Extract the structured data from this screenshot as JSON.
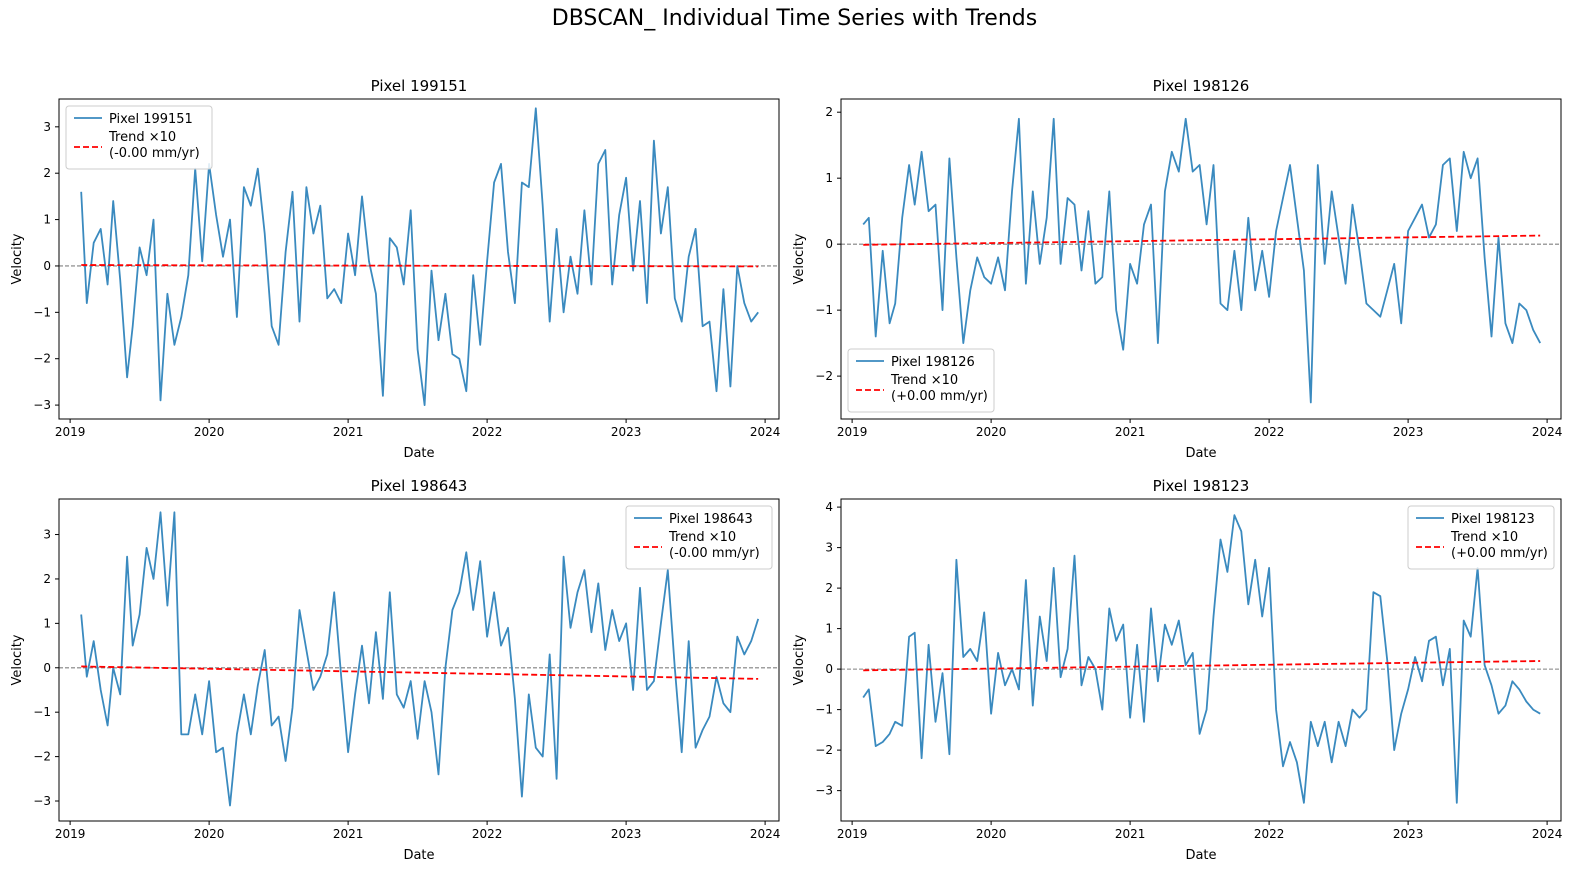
{
  "figure": {
    "title": "DBSCAN_ Individual Time Series with Trends"
  },
  "colors": {
    "series": "#3a8abf",
    "trend": "#ff0000",
    "zero_line": "#808080"
  },
  "chart_data": [
    {
      "type": "line",
      "title": "Pixel 199151",
      "xlabel": "Date",
      "ylabel": "Velocity",
      "xlim": [
        2018.92,
        2024.1
      ],
      "ylim": [
        -3.3,
        3.6
      ],
      "x_ticks": [
        2019,
        2020,
        2021,
        2022,
        2023,
        2024
      ],
      "x_tick_labels": [
        "2019",
        "2020",
        "2021",
        "2022",
        "2023",
        "2024"
      ],
      "y_ticks": [
        -3,
        -2,
        -1,
        0,
        1,
        2,
        3
      ],
      "y_tick_labels": [
        "−3",
        "−2",
        "−1",
        "0",
        "1",
        "2",
        "3"
      ],
      "legend_position": "top-left",
      "legend": {
        "series": "Pixel 199151",
        "trend_line1": "Trend ×10",
        "trend_line2": "(-0.00 mm/yr)"
      },
      "trend": {
        "x": [
          2019.08,
          2023.95
        ],
        "y": [
          0.02,
          -0.01
        ]
      },
      "series": [
        {
          "name": "Pixel 199151",
          "x": [
            2019.08,
            2019.12,
            2019.17,
            2019.22,
            2019.27,
            2019.31,
            2019.36,
            2019.41,
            2019.45,
            2019.5,
            2019.55,
            2019.6,
            2019.65,
            2019.7,
            2019.75,
            2019.8,
            2019.85,
            2019.9,
            2019.95,
            2020.0,
            2020.05,
            2020.1,
            2020.15,
            2020.2,
            2020.25,
            2020.3,
            2020.35,
            2020.4,
            2020.45,
            2020.5,
            2020.55,
            2020.6,
            2020.65,
            2020.7,
            2020.75,
            2020.8,
            2020.85,
            2020.9,
            2020.95,
            2021.0,
            2021.05,
            2021.1,
            2021.15,
            2021.2,
            2021.25,
            2021.3,
            2021.35,
            2021.4,
            2021.45,
            2021.5,
            2021.55,
            2021.6,
            2021.65,
            2021.7,
            2021.75,
            2021.8,
            2021.85,
            2021.9,
            2021.95,
            2022.0,
            2022.05,
            2022.1,
            2022.15,
            2022.2,
            2022.25,
            2022.3,
            2022.35,
            2022.4,
            2022.45,
            2022.5,
            2022.55,
            2022.6,
            2022.65,
            2022.7,
            2022.75,
            2022.8,
            2022.85,
            2022.9,
            2022.95,
            2023.0,
            2023.05,
            2023.1,
            2023.15,
            2023.2,
            2023.25,
            2023.3,
            2023.35,
            2023.4,
            2023.45,
            2023.5,
            2023.55,
            2023.6,
            2023.65,
            2023.7,
            2023.75,
            2023.8,
            2023.85,
            2023.9,
            2023.95
          ],
          "y": [
            1.6,
            -0.8,
            0.5,
            0.8,
            -0.4,
            1.4,
            -0.3,
            -2.4,
            -1.3,
            0.4,
            -0.2,
            1.0,
            -2.9,
            -0.6,
            -1.7,
            -1.1,
            -0.2,
            2.1,
            0.1,
            2.2,
            1.1,
            0.2,
            1.0,
            -1.1,
            1.7,
            1.3,
            2.1,
            0.7,
            -1.3,
            -1.7,
            0.3,
            1.6,
            -1.2,
            1.7,
            0.7,
            1.3,
            -0.7,
            -0.5,
            -0.8,
            0.7,
            -0.2,
            1.5,
            0.1,
            -0.6,
            -2.8,
            0.6,
            0.4,
            -0.4,
            1.2,
            -1.8,
            -3.0,
            -0.1,
            -1.6,
            -0.6,
            -1.9,
            -2.0,
            -2.7,
            -0.2,
            -1.7,
            0.1,
            1.8,
            2.2,
            0.3,
            -0.8,
            1.8,
            1.7,
            3.4,
            1.3,
            -1.2,
            0.8,
            -1.0,
            0.2,
            -0.6,
            1.2,
            -0.4,
            2.2,
            2.5,
            -0.4,
            1.1,
            1.9,
            -0.1,
            1.4,
            -0.8,
            2.7,
            0.7,
            1.7,
            -0.7,
            -1.2,
            0.2,
            0.8,
            -1.3,
            -1.2,
            -2.7,
            -0.5,
            -2.6,
            0.0,
            -0.8,
            -1.2,
            -1.0
          ]
        }
      ]
    },
    {
      "type": "line",
      "title": "Pixel 198126",
      "xlabel": "Date",
      "ylabel": "Velocity",
      "xlim": [
        2018.92,
        2024.1
      ],
      "ylim": [
        -2.65,
        2.2
      ],
      "x_ticks": [
        2019,
        2020,
        2021,
        2022,
        2023,
        2024
      ],
      "x_tick_labels": [
        "2019",
        "2020",
        "2021",
        "2022",
        "2023",
        "2024"
      ],
      "y_ticks": [
        -2,
        -1,
        0,
        1,
        2
      ],
      "y_tick_labels": [
        "−2",
        "−1",
        "0",
        "1",
        "2"
      ],
      "legend_position": "bottom-left",
      "legend": {
        "series": "Pixel 198126",
        "trend_line1": "Trend ×10",
        "trend_line2": "(+0.00 mm/yr)"
      },
      "trend": {
        "x": [
          2019.08,
          2023.95
        ],
        "y": [
          -0.01,
          0.13
        ]
      },
      "series": [
        {
          "name": "Pixel 198126",
          "x": [
            2019.08,
            2019.12,
            2019.17,
            2019.22,
            2019.27,
            2019.31,
            2019.36,
            2019.41,
            2019.45,
            2019.5,
            2019.55,
            2019.6,
            2019.65,
            2019.7,
            2019.75,
            2019.8,
            2019.85,
            2019.9,
            2019.95,
            2020.0,
            2020.05,
            2020.1,
            2020.15,
            2020.2,
            2020.25,
            2020.3,
            2020.35,
            2020.4,
            2020.45,
            2020.5,
            2020.55,
            2020.6,
            2020.65,
            2020.7,
            2020.75,
            2020.8,
            2020.85,
            2020.9,
            2020.95,
            2021.0,
            2021.05,
            2021.1,
            2021.15,
            2021.2,
            2021.25,
            2021.3,
            2021.35,
            2021.4,
            2021.45,
            2021.5,
            2021.55,
            2021.6,
            2021.65,
            2021.7,
            2021.75,
            2021.8,
            2021.85,
            2021.9,
            2021.95,
            2022.0,
            2022.05,
            2022.1,
            2022.15,
            2022.2,
            2022.25,
            2022.3,
            2022.35,
            2022.4,
            2022.45,
            2022.5,
            2022.55,
            2022.6,
            2022.65,
            2022.7,
            2022.75,
            2022.8,
            2022.85,
            2022.9,
            2022.95,
            2023.0,
            2023.05,
            2023.1,
            2023.15,
            2023.2,
            2023.25,
            2023.3,
            2023.35,
            2023.4,
            2023.45,
            2023.5,
            2023.55,
            2023.6,
            2023.65,
            2023.7,
            2023.75,
            2023.8,
            2023.85,
            2023.9,
            2023.95
          ],
          "y": [
            0.3,
            0.4,
            -1.4,
            -0.1,
            -1.2,
            -0.9,
            0.4,
            1.2,
            0.6,
            1.4,
            0.5,
            0.6,
            -1.0,
            1.3,
            -0.2,
            -1.5,
            -0.7,
            -0.2,
            -0.5,
            -0.6,
            -0.2,
            -0.7,
            0.8,
            1.9,
            -0.6,
            0.8,
            -0.3,
            0.4,
            1.9,
            -0.3,
            0.7,
            0.6,
            -0.4,
            0.5,
            -0.6,
            -0.5,
            0.8,
            -1.0,
            -1.6,
            -0.3,
            -0.6,
            0.3,
            0.6,
            -1.5,
            0.8,
            1.4,
            1.1,
            1.9,
            1.1,
            1.2,
            0.3,
            1.2,
            -0.9,
            -1.0,
            -0.1,
            -1.0,
            0.4,
            -0.7,
            -0.1,
            -0.8,
            0.2,
            0.7,
            1.2,
            0.4,
            -0.4,
            -2.4,
            1.2,
            -0.3,
            0.8,
            0.1,
            -0.6,
            0.6,
            -0.1,
            -0.9,
            -1.0,
            -1.1,
            -0.7,
            -0.3,
            -1.2,
            0.2,
            0.4,
            0.6,
            0.1,
            0.3,
            1.2,
            1.3,
            0.2,
            1.4,
            1.0,
            1.3,
            -0.2,
            -1.4,
            0.1,
            -1.2,
            -1.5,
            -0.9,
            -1.0,
            -1.3,
            -1.5
          ]
        }
      ]
    },
    {
      "type": "line",
      "title": "Pixel 198643",
      "xlabel": "Date",
      "ylabel": "Velocity",
      "xlim": [
        2018.92,
        2024.1
      ],
      "ylim": [
        -3.45,
        3.8
      ],
      "x_ticks": [
        2019,
        2020,
        2021,
        2022,
        2023,
        2024
      ],
      "x_tick_labels": [
        "2019",
        "2020",
        "2021",
        "2022",
        "2023",
        "2024"
      ],
      "y_ticks": [
        -3,
        -2,
        -1,
        0,
        1,
        2,
        3
      ],
      "y_tick_labels": [
        "−3",
        "−2",
        "−1",
        "0",
        "1",
        "2",
        "3"
      ],
      "legend_position": "top-right",
      "legend": {
        "series": "Pixel 198643",
        "trend_line1": "Trend ×10",
        "trend_line2": "(-0.00 mm/yr)"
      },
      "trend": {
        "x": [
          2019.08,
          2023.95
        ],
        "y": [
          0.03,
          -0.25
        ]
      },
      "series": [
        {
          "name": "Pixel 198643",
          "x": [
            2019.08,
            2019.12,
            2019.17,
            2019.22,
            2019.27,
            2019.31,
            2019.36,
            2019.41,
            2019.45,
            2019.5,
            2019.55,
            2019.6,
            2019.65,
            2019.7,
            2019.75,
            2019.8,
            2019.85,
            2019.9,
            2019.95,
            2020.0,
            2020.05,
            2020.1,
            2020.15,
            2020.2,
            2020.25,
            2020.3,
            2020.35,
            2020.4,
            2020.45,
            2020.5,
            2020.55,
            2020.6,
            2020.65,
            2020.7,
            2020.75,
            2020.8,
            2020.85,
            2020.9,
            2020.95,
            2021.0,
            2021.05,
            2021.1,
            2021.15,
            2021.2,
            2021.25,
            2021.3,
            2021.35,
            2021.4,
            2021.45,
            2021.5,
            2021.55,
            2021.6,
            2021.65,
            2021.7,
            2021.75,
            2021.8,
            2021.85,
            2021.9,
            2021.95,
            2022.0,
            2022.05,
            2022.1,
            2022.15,
            2022.2,
            2022.25,
            2022.3,
            2022.35,
            2022.4,
            2022.45,
            2022.5,
            2022.55,
            2022.6,
            2022.65,
            2022.7,
            2022.75,
            2022.8,
            2022.85,
            2022.9,
            2022.95,
            2023.0,
            2023.05,
            2023.1,
            2023.15,
            2023.2,
            2023.25,
            2023.3,
            2023.35,
            2023.4,
            2023.45,
            2023.5,
            2023.55,
            2023.6,
            2023.65,
            2023.7,
            2023.75,
            2023.8,
            2023.85,
            2023.9,
            2023.95
          ],
          "y": [
            1.2,
            -0.2,
            0.6,
            -0.5,
            -1.3,
            0.0,
            -0.6,
            2.5,
            0.5,
            1.2,
            2.7,
            2.0,
            3.5,
            1.4,
            3.5,
            -1.5,
            -1.5,
            -0.6,
            -1.5,
            -0.3,
            -1.9,
            -1.8,
            -3.1,
            -1.5,
            -0.6,
            -1.5,
            -0.4,
            0.4,
            -1.3,
            -1.1,
            -2.1,
            -0.9,
            1.3,
            0.4,
            -0.5,
            -0.2,
            0.3,
            1.7,
            -0.2,
            -1.9,
            -0.6,
            0.5,
            -0.8,
            0.8,
            -0.7,
            1.7,
            -0.6,
            -0.9,
            -0.3,
            -1.6,
            -0.3,
            -1.0,
            -2.4,
            0.0,
            1.3,
            1.7,
            2.6,
            1.3,
            2.4,
            0.7,
            1.7,
            0.5,
            0.9,
            -0.7,
            -2.9,
            -0.6,
            -1.8,
            -2.0,
            0.3,
            -2.5,
            2.5,
            0.9,
            1.7,
            2.2,
            0.8,
            1.9,
            0.4,
            1.3,
            0.6,
            1.0,
            -0.5,
            1.8,
            -0.5,
            -0.3,
            1.0,
            2.2,
            0.0,
            -1.9,
            0.6,
            -1.8,
            -1.4,
            -1.1,
            -0.2,
            -0.8,
            -1.0,
            0.7,
            0.3,
            0.6,
            1.1
          ]
        }
      ]
    },
    {
      "type": "line",
      "title": "Pixel 198123",
      "xlabel": "Date",
      "ylabel": "Velocity",
      "xlim": [
        2018.92,
        2024.1
      ],
      "ylim": [
        -3.75,
        4.2
      ],
      "x_ticks": [
        2019,
        2020,
        2021,
        2022,
        2023,
        2024
      ],
      "x_tick_labels": [
        "2019",
        "2020",
        "2021",
        "2022",
        "2023",
        "2024"
      ],
      "y_ticks": [
        -3,
        -2,
        -1,
        0,
        1,
        2,
        3,
        4
      ],
      "y_tick_labels": [
        "−3",
        "−2",
        "−1",
        "0",
        "1",
        "2",
        "3",
        "4"
      ],
      "legend_position": "top-right",
      "legend": {
        "series": "Pixel 198123",
        "trend_line1": "Trend ×10",
        "trend_line2": "(+0.00 mm/yr)"
      },
      "trend": {
        "x": [
          2019.08,
          2023.95
        ],
        "y": [
          -0.03,
          0.2
        ]
      },
      "series": [
        {
          "name": "Pixel 198123",
          "x": [
            2019.08,
            2019.12,
            2019.17,
            2019.22,
            2019.27,
            2019.31,
            2019.36,
            2019.41,
            2019.45,
            2019.5,
            2019.55,
            2019.6,
            2019.65,
            2019.7,
            2019.75,
            2019.8,
            2019.85,
            2019.9,
            2019.95,
            2020.0,
            2020.05,
            2020.1,
            2020.15,
            2020.2,
            2020.25,
            2020.3,
            2020.35,
            2020.4,
            2020.45,
            2020.5,
            2020.55,
            2020.6,
            2020.65,
            2020.7,
            2020.75,
            2020.8,
            2020.85,
            2020.9,
            2020.95,
            2021.0,
            2021.05,
            2021.1,
            2021.15,
            2021.2,
            2021.25,
            2021.3,
            2021.35,
            2021.4,
            2021.45,
            2021.5,
            2021.55,
            2021.6,
            2021.65,
            2021.7,
            2021.75,
            2021.8,
            2021.85,
            2021.9,
            2021.95,
            2022.0,
            2022.05,
            2022.1,
            2022.15,
            2022.2,
            2022.25,
            2022.3,
            2022.35,
            2022.4,
            2022.45,
            2022.5,
            2022.55,
            2022.6,
            2022.65,
            2022.7,
            2022.75,
            2022.8,
            2022.85,
            2022.9,
            2022.95,
            2023.0,
            2023.05,
            2023.1,
            2023.15,
            2023.2,
            2023.25,
            2023.3,
            2023.35,
            2023.4,
            2023.45,
            2023.5,
            2023.55,
            2023.6,
            2023.65,
            2023.7,
            2023.75,
            2023.8,
            2023.85,
            2023.9,
            2023.95
          ],
          "y": [
            -0.7,
            -0.5,
            -1.9,
            -1.8,
            -1.6,
            -1.3,
            -1.4,
            0.8,
            0.9,
            -2.2,
            0.6,
            -1.3,
            -0.1,
            -2.1,
            2.7,
            0.3,
            0.5,
            0.2,
            1.4,
            -1.1,
            0.4,
            -0.4,
            0.0,
            -0.5,
            2.2,
            -0.9,
            1.3,
            0.2,
            2.5,
            -0.2,
            0.5,
            2.8,
            -0.4,
            0.3,
            0.0,
            -1.0,
            1.5,
            0.7,
            1.1,
            -1.2,
            0.6,
            -1.3,
            1.5,
            -0.3,
            1.1,
            0.6,
            1.2,
            0.1,
            0.4,
            -1.6,
            -1.0,
            1.3,
            3.2,
            2.4,
            3.8,
            3.4,
            1.6,
            2.7,
            1.3,
            2.5,
            -1.0,
            -2.4,
            -1.8,
            -2.3,
            -3.3,
            -1.3,
            -1.9,
            -1.3,
            -2.3,
            -1.3,
            -1.9,
            -1.0,
            -1.2,
            -1.0,
            1.9,
            1.8,
            0.2,
            -2.0,
            -1.1,
            -0.5,
            0.3,
            -0.3,
            0.7,
            0.8,
            -0.4,
            0.5,
            -3.3,
            1.2,
            0.8,
            2.5,
            0.1,
            -0.4,
            -1.1,
            -0.9,
            -0.3,
            -0.5,
            -0.8,
            -1.0,
            -1.1
          ]
        }
      ]
    }
  ]
}
